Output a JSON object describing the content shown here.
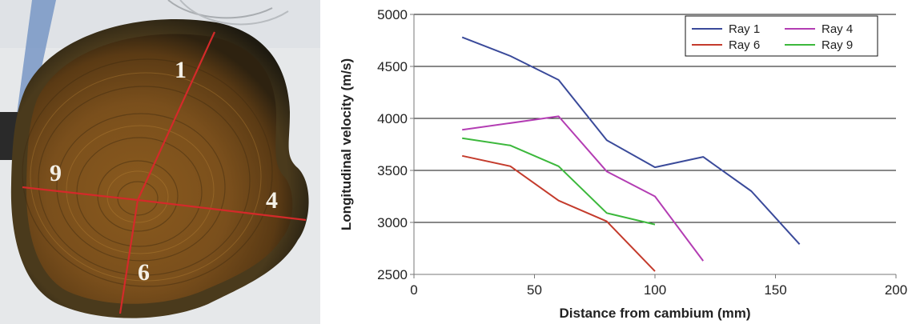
{
  "photo": {
    "ray_labels": [
      "1",
      "9",
      "4",
      "6"
    ],
    "line_color": "#d42a2a"
  },
  "chart_data": {
    "type": "line",
    "title": "",
    "xlabel": "Distance from cambium (mm)",
    "ylabel": "Longitudinal velocity (m/s)",
    "xlim": [
      0,
      200
    ],
    "ylim": [
      2500,
      5000
    ],
    "x_ticks": [
      0,
      50,
      100,
      150,
      200
    ],
    "y_ticks": [
      2500,
      3000,
      3500,
      4000,
      4500,
      5000
    ],
    "grid": "horizontal",
    "legend_position": "top-right",
    "legend_columns": 2,
    "series": [
      {
        "name": "Ray 1",
        "color": "#3a4a9a",
        "x": [
          20,
          40,
          60,
          80,
          100,
          120,
          140,
          160
        ],
        "y": [
          4780,
          4600,
          4370,
          3790,
          3530,
          3630,
          3300,
          2790
        ]
      },
      {
        "name": "Ray 4",
        "color": "#b33db3",
        "x": [
          20,
          60,
          80,
          100,
          120
        ],
        "y": [
          3890,
          4020,
          3490,
          3250,
          2630
        ]
      },
      {
        "name": "Ray 6",
        "color": "#c43b2c",
        "x": [
          20,
          40,
          60,
          80,
          100
        ],
        "y": [
          3640,
          3540,
          3210,
          3010,
          2530
        ]
      },
      {
        "name": "Ray 9",
        "color": "#3cb83c",
        "x": [
          20,
          40,
          60,
          80,
          100
        ],
        "y": [
          3810,
          3740,
          3540,
          3090,
          2980
        ]
      }
    ]
  }
}
